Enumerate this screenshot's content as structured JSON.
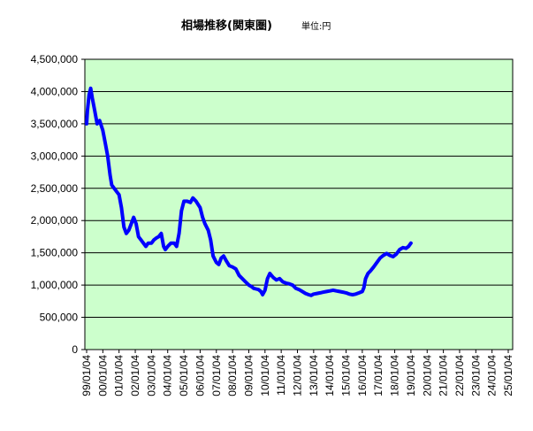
{
  "chart_data": {
    "type": "line",
    "title": "相場推移(関東圏)",
    "subtitle": "単位:円",
    "xlabel": "",
    "ylabel": "",
    "ylim": [
      0,
      4500000
    ],
    "yticks": [
      0,
      500000,
      1000000,
      1500000,
      2000000,
      2500000,
      3000000,
      3500000,
      4000000,
      4500000
    ],
    "ytick_labels": [
      "0",
      "500,000",
      "1,000,000",
      "1,500,000",
      "2,000,000",
      "2,500,000",
      "3,000,000",
      "3,500,000",
      "4,000,000",
      "4,500,000"
    ],
    "xtick_labels": [
      "99/01/04",
      "00/01/04",
      "01/01/04",
      "02/01/04",
      "03/01/04",
      "04/01/04",
      "05/01/04",
      "06/01/04",
      "07/01/04",
      "08/01/04",
      "09/01/04",
      "10/01/04",
      "11/01/04",
      "12/01/04",
      "13/01/04",
      "14/01/04",
      "15/01/04",
      "16/01/04",
      "17/01/04",
      "18/01/04",
      "19/01/04",
      "20/01/04",
      "21/01/04",
      "22/01/04",
      "23/01/04",
      "24/01/04",
      "25/01/04"
    ],
    "grid": true,
    "legend": "none",
    "colors": {
      "line": "#0000ff",
      "plot_bg": "#ccffcc",
      "grid": "#000000"
    },
    "series": [
      {
        "values": [
          [
            1999.0,
            3500000
          ],
          [
            1999.05,
            3700000
          ],
          [
            1999.15,
            3950000
          ],
          [
            1999.25,
            4050000
          ],
          [
            1999.35,
            3900000
          ],
          [
            1999.5,
            3700000
          ],
          [
            1999.65,
            3500000
          ],
          [
            1999.8,
            3550000
          ],
          [
            2000.0,
            3400000
          ],
          [
            2000.15,
            3200000
          ],
          [
            2000.3,
            3000000
          ],
          [
            2000.45,
            2700000
          ],
          [
            2000.55,
            2550000
          ],
          [
            2000.7,
            2500000
          ],
          [
            2000.85,
            2450000
          ],
          [
            2001.0,
            2400000
          ],
          [
            2001.15,
            2200000
          ],
          [
            2001.3,
            1900000
          ],
          [
            2001.45,
            1800000
          ],
          [
            2001.6,
            1850000
          ],
          [
            2001.75,
            1950000
          ],
          [
            2001.9,
            2050000
          ],
          [
            2002.05,
            1950000
          ],
          [
            2002.2,
            1750000
          ],
          [
            2002.35,
            1700000
          ],
          [
            2002.5,
            1650000
          ],
          [
            2002.65,
            1600000
          ],
          [
            2002.8,
            1650000
          ],
          [
            2003.0,
            1650000
          ],
          [
            2003.15,
            1700000
          ],
          [
            2003.3,
            1730000
          ],
          [
            2003.45,
            1750000
          ],
          [
            2003.6,
            1800000
          ],
          [
            2003.75,
            1600000
          ],
          [
            2003.85,
            1550000
          ],
          [
            2004.0,
            1600000
          ],
          [
            2004.2,
            1650000
          ],
          [
            2004.4,
            1650000
          ],
          [
            2004.55,
            1600000
          ],
          [
            2004.7,
            1800000
          ],
          [
            2004.85,
            2150000
          ],
          [
            2005.0,
            2300000
          ],
          [
            2005.2,
            2300000
          ],
          [
            2005.4,
            2280000
          ],
          [
            2005.55,
            2350000
          ],
          [
            2005.75,
            2300000
          ],
          [
            2006.0,
            2200000
          ],
          [
            2006.15,
            2050000
          ],
          [
            2006.3,
            1950000
          ],
          [
            2006.5,
            1850000
          ],
          [
            2006.65,
            1700000
          ],
          [
            2006.8,
            1450000
          ],
          [
            2007.0,
            1350000
          ],
          [
            2007.15,
            1320000
          ],
          [
            2007.3,
            1420000
          ],
          [
            2007.45,
            1450000
          ],
          [
            2007.6,
            1380000
          ],
          [
            2007.8,
            1300000
          ],
          [
            2008.0,
            1280000
          ],
          [
            2008.2,
            1250000
          ],
          [
            2008.4,
            1150000
          ],
          [
            2008.6,
            1100000
          ],
          [
            2008.8,
            1050000
          ],
          [
            2009.0,
            1000000
          ],
          [
            2009.15,
            980000
          ],
          [
            2009.3,
            950000
          ],
          [
            2009.45,
            940000
          ],
          [
            2009.6,
            930000
          ],
          [
            2009.75,
            900000
          ],
          [
            2009.85,
            850000
          ],
          [
            2010.0,
            920000
          ],
          [
            2010.15,
            1100000
          ],
          [
            2010.3,
            1180000
          ],
          [
            2010.5,
            1120000
          ],
          [
            2010.7,
            1080000
          ],
          [
            2010.9,
            1100000
          ],
          [
            2011.1,
            1050000
          ],
          [
            2011.3,
            1030000
          ],
          [
            2011.5,
            1020000
          ],
          [
            2011.7,
            1000000
          ],
          [
            2011.9,
            950000
          ],
          [
            2012.1,
            930000
          ],
          [
            2012.3,
            900000
          ],
          [
            2012.5,
            870000
          ],
          [
            2012.7,
            850000
          ],
          [
            2012.85,
            840000
          ],
          [
            2013.0,
            860000
          ],
          [
            2013.2,
            870000
          ],
          [
            2013.4,
            880000
          ],
          [
            2013.6,
            890000
          ],
          [
            2013.8,
            900000
          ],
          [
            2014.0,
            910000
          ],
          [
            2014.2,
            920000
          ],
          [
            2014.4,
            910000
          ],
          [
            2014.6,
            900000
          ],
          [
            2014.8,
            890000
          ],
          [
            2015.0,
            880000
          ],
          [
            2015.2,
            860000
          ],
          [
            2015.4,
            850000
          ],
          [
            2015.6,
            860000
          ],
          [
            2015.8,
            880000
          ],
          [
            2016.0,
            900000
          ],
          [
            2016.1,
            960000
          ],
          [
            2016.2,
            1100000
          ],
          [
            2016.35,
            1180000
          ],
          [
            2016.5,
            1220000
          ],
          [
            2016.7,
            1280000
          ],
          [
            2016.9,
            1350000
          ],
          [
            2017.1,
            1420000
          ],
          [
            2017.3,
            1460000
          ],
          [
            2017.5,
            1490000
          ],
          [
            2017.7,
            1460000
          ],
          [
            2017.9,
            1440000
          ],
          [
            2018.1,
            1480000
          ],
          [
            2018.3,
            1550000
          ],
          [
            2018.5,
            1580000
          ],
          [
            2018.7,
            1570000
          ],
          [
            2018.85,
            1600000
          ],
          [
            2019.0,
            1650000
          ]
        ]
      }
    ]
  }
}
